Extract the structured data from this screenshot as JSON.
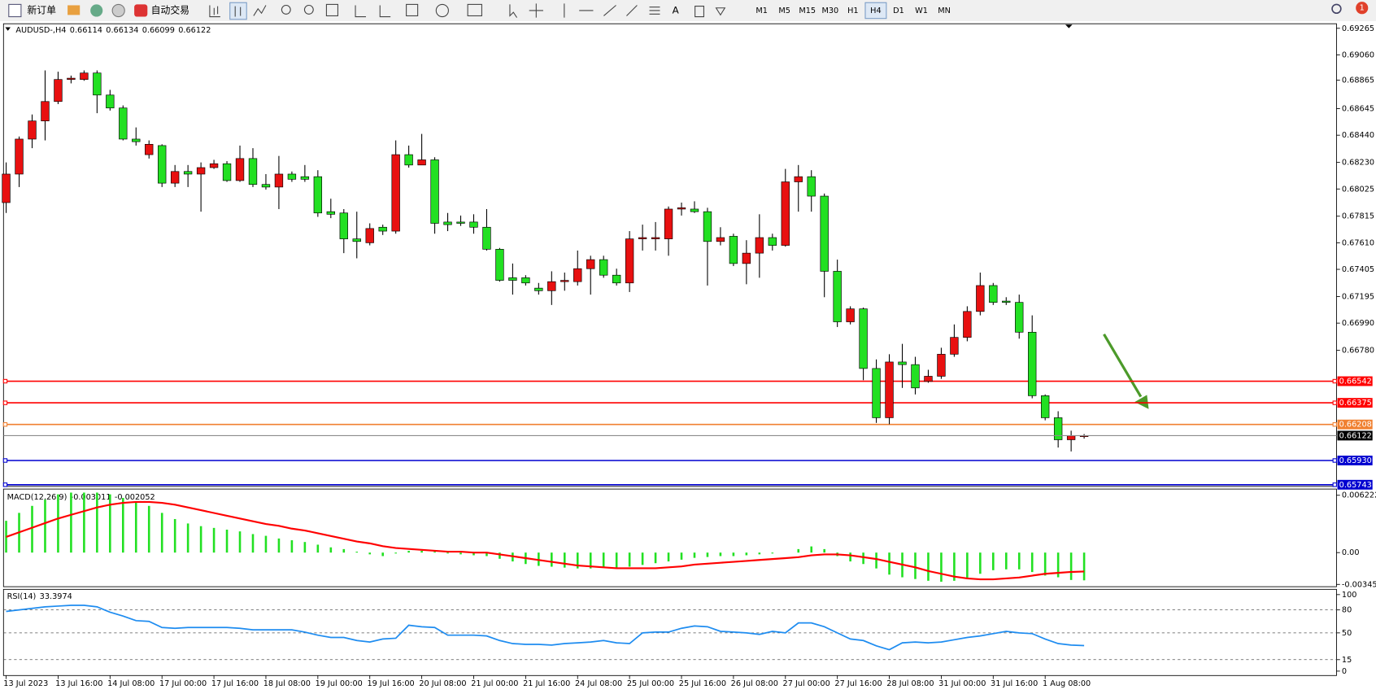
{
  "toolbar": {
    "new_order": "新订单",
    "auto_trading": "自动交易",
    "timeframes": [
      "M1",
      "M5",
      "M15",
      "M30",
      "H1",
      "H4",
      "D1",
      "W1",
      "MN"
    ],
    "active_timeframe": 5,
    "badge": "1"
  },
  "chart_data": [
    {
      "type": "candlestick",
      "title": "AUDUSD-,H4",
      "categories": [
        "13 Jul 2023",
        null,
        null,
        null,
        "13 Jul 16:00",
        null,
        null,
        null,
        "14 Jul 08:00",
        null,
        null,
        null,
        "17 Jul 00:00",
        null,
        null,
        null,
        "17 Jul 16:00",
        null,
        null,
        null,
        "18 Jul 08:00",
        null,
        null,
        null,
        "19 Jul 00:00",
        null,
        null,
        null,
        "19 Jul 16:00",
        null,
        null,
        null,
        "20 Jul 08:00",
        null,
        null,
        null,
        "21 Jul 00:00",
        null,
        null,
        null,
        "21 Jul 16:00",
        null,
        null,
        null,
        "24 Jul 08:00",
        null,
        null,
        null,
        "25 Jul 00:00",
        null,
        null,
        null,
        "25 Jul 16:00",
        null,
        null,
        null,
        "26 Jul 08:00",
        null,
        null,
        null,
        "27 Jul 00:00",
        null,
        null,
        null,
        "27 Jul 16:00",
        null,
        null,
        null,
        "28 Jul 08:00",
        null,
        null,
        null,
        "31 Jul 00:00",
        null,
        null,
        null,
        "31 Jul 16:00",
        null,
        null,
        null,
        "1 Aug 08:00",
        null,
        null,
        null
      ],
      "open": [
        0.6792,
        0.6814,
        0.6841,
        0.6855,
        0.687,
        0.6887,
        0.6887,
        0.6892,
        0.6875,
        0.6865,
        0.6841,
        0.6829,
        0.6836,
        0.6807,
        0.6816,
        0.6814,
        0.6819,
        0.6822,
        0.6809,
        0.6826,
        0.6806,
        0.6804,
        0.6814,
        0.6812,
        0.6812,
        0.6785,
        0.6784,
        0.6764,
        0.6761,
        0.6773,
        0.677,
        0.6829,
        0.6821,
        0.6825,
        0.6777,
        0.6777,
        0.6777,
        0.6773,
        0.6756,
        0.6734,
        0.6734,
        0.6726,
        0.6724,
        0.6731,
        0.6731,
        0.6741,
        0.6748,
        0.6736,
        0.673,
        0.6764,
        0.6764,
        0.6764,
        0.6787,
        0.6787,
        0.6785,
        0.6762,
        0.6766,
        0.6745,
        0.6753,
        0.6765,
        0.6759,
        0.6808,
        0.6812,
        0.6797,
        0.6739,
        0.67,
        0.671,
        0.6664,
        0.6626,
        0.6669,
        0.6667,
        0.6654,
        0.6658,
        0.6675,
        0.6688,
        0.6708,
        0.6728,
        0.6716,
        0.6715,
        0.6692,
        0.6643,
        0.6626,
        0.6609,
        0.66114
      ],
      "high": [
        0.6823,
        0.6843,
        0.686,
        0.6894,
        0.6893,
        0.689,
        0.6894,
        0.6894,
        0.6879,
        0.6867,
        0.685,
        0.684,
        0.6837,
        0.6821,
        0.6821,
        0.6823,
        0.6825,
        0.6824,
        0.6836,
        0.6834,
        0.6814,
        0.6828,
        0.6816,
        0.6821,
        0.6817,
        0.6795,
        0.6787,
        0.6785,
        0.6776,
        0.6775,
        0.684,
        0.6836,
        0.6845,
        0.6827,
        0.6784,
        0.6782,
        0.6783,
        0.6787,
        0.6757,
        0.6745,
        0.6736,
        0.673,
        0.6739,
        0.6738,
        0.6755,
        0.6751,
        0.6751,
        0.6741,
        0.677,
        0.6775,
        0.6777,
        0.6789,
        0.6792,
        0.6793,
        0.6788,
        0.6773,
        0.6768,
        0.6763,
        0.6783,
        0.6768,
        0.6818,
        0.6821,
        0.6817,
        0.6799,
        0.6748,
        0.6712,
        0.6711,
        0.6671,
        0.6675,
        0.6683,
        0.6673,
        0.6663,
        0.668,
        0.6698,
        0.6712,
        0.6738,
        0.673,
        0.6719,
        0.6721,
        0.6705,
        0.6644,
        0.6631,
        0.6616,
        0.66134
      ],
      "low": [
        0.6784,
        0.6804,
        0.6834,
        0.684,
        0.6868,
        0.6884,
        0.6886,
        0.6861,
        0.6863,
        0.684,
        0.6836,
        0.6826,
        0.6804,
        0.6804,
        0.6804,
        0.6785,
        0.6818,
        0.6808,
        0.6808,
        0.6804,
        0.6802,
        0.6787,
        0.6808,
        0.6808,
        0.6781,
        0.678,
        0.6753,
        0.6749,
        0.6759,
        0.6767,
        0.6768,
        0.6819,
        0.6821,
        0.6768,
        0.677,
        0.6774,
        0.6768,
        0.6755,
        0.6731,
        0.6721,
        0.6728,
        0.6721,
        0.6713,
        0.6724,
        0.6728,
        0.6721,
        0.6734,
        0.6728,
        0.6723,
        0.6755,
        0.6755,
        0.6751,
        0.6782,
        0.6784,
        0.6728,
        0.6759,
        0.6743,
        0.6729,
        0.6734,
        0.6755,
        0.6758,
        0.6785,
        0.6785,
        0.6719,
        0.6696,
        0.6698,
        0.6655,
        0.6622,
        0.6621,
        0.6649,
        0.6644,
        0.6653,
        0.6656,
        0.6673,
        0.6685,
        0.6705,
        0.6713,
        0.6713,
        0.6687,
        0.6641,
        0.6624,
        0.6603,
        0.66,
        0.66099
      ],
      "close": [
        0.6814,
        0.6841,
        0.6855,
        0.687,
        0.6887,
        0.6888,
        0.6892,
        0.6875,
        0.6865,
        0.6841,
        0.6839,
        0.6837,
        0.6807,
        0.6816,
        0.6814,
        0.6819,
        0.6822,
        0.6809,
        0.6826,
        0.6806,
        0.6804,
        0.6814,
        0.681,
        0.681,
        0.6784,
        0.6783,
        0.6764,
        0.6762,
        0.6772,
        0.677,
        0.6829,
        0.6821,
        0.6825,
        0.6776,
        0.6775,
        0.6776,
        0.6773,
        0.6756,
        0.6732,
        0.6732,
        0.673,
        0.6724,
        0.6731,
        0.6732,
        0.6741,
        0.6748,
        0.6736,
        0.673,
        0.6764,
        0.6765,
        0.6765,
        0.6787,
        0.6788,
        0.6785,
        0.6762,
        0.6765,
        0.6745,
        0.6753,
        0.6765,
        0.6759,
        0.6808,
        0.6812,
        0.6797,
        0.6739,
        0.67,
        0.671,
        0.6664,
        0.6626,
        0.6669,
        0.6667,
        0.6649,
        0.6658,
        0.6675,
        0.6688,
        0.6708,
        0.6728,
        0.6715,
        0.6715,
        0.6692,
        0.6643,
        0.6626,
        0.6609,
        0.6612,
        0.66122
      ],
      "up_color": "#e81010",
      "down_color": "#22e022",
      "wick_color": "#000000",
      "current_price_color": "#8c8c8c",
      "ylim": [
        0.6573,
        0.693
      ],
      "yticks": [
        0.69265,
        {
          "value": 0.6906,
          "label": "0.69060"
        },
        0.68865,
        0.68645,
        {
          "value": 0.6844,
          "label": "0.68440"
        },
        {
          "value": 0.6823,
          "label": "0.68230"
        },
        0.68025,
        0.67815,
        {
          "value": 0.6761,
          "label": "0.67610"
        },
        0.67405,
        0.67195,
        {
          "value": 0.6699,
          "label": "0.66990"
        },
        {
          "value": 0.6678,
          "label": "0.66780"
        }
      ],
      "levels": [
        {
          "value": 0.66542,
          "color": "#ff0000"
        },
        {
          "value": 0.66375,
          "color": "#ff0000"
        },
        {
          "value": 0.66208,
          "color": "#f08030"
        },
        {
          "value": 0.6593,
          "label": "0.65930",
          "color": "#0000d0"
        },
        {
          "value": 0.65743,
          "color": "#0000d0"
        }
      ]
    },
    {
      "type": "macd",
      "title": "MACD(12,26,9)",
      "series": [
        {
          "color": "#22e022",
          "values": [
            0.00345,
            0.00431,
            0.00507,
            0.00574,
            0.00632,
            0.00651,
            0.00651,
            0.00651,
            0.00632,
            0.00593,
            0.00555,
            0.00507,
            0.00431,
            0.00364,
            0.00316,
            0.00287,
            0.00268,
            0.00249,
            0.0023,
            0.00201,
            0.00182,
            0.00153,
            0.00134,
            0.00115,
            0.00086,
            0.00057,
            0.00038,
            0.0001,
            -0.00019,
            -0.00038,
            -0.0001,
            0.00019,
            0.00019,
            0.0001,
            -0.0001,
            -0.00019,
            -0.00029,
            -0.00038,
            -0.00067,
            -0.00096,
            -0.00124,
            -0.00144,
            -0.00153,
            -0.00163,
            -0.00172,
            -0.00172,
            -0.00163,
            -0.00163,
            -0.00153,
            -0.00134,
            -0.00115,
            -0.00096,
            -0.00077,
            -0.00057,
            -0.00048,
            -0.00038,
            -0.00038,
            -0.00029,
            -0.00019,
            -0.0001,
            0,
            0.00038,
            0.00067,
            0.00038,
            -0.00038,
            -0.00096,
            -0.00124,
            -0.00172,
            -0.00239,
            -0.00268,
            -0.00287,
            -0.00306,
            -0.00316,
            -0.00306,
            -0.00278,
            -0.0023,
            -0.00191,
            -0.00182,
            -0.00182,
            -0.00211,
            -0.00249,
            -0.00268,
            -0.00297,
            -0.003011
          ]
        },
        {
          "color": "#ff0000",
          "values": [
            0.0017,
            0.0022,
            0.0027,
            0.0032,
            0.0037,
            0.0041,
            0.0045,
            0.0049,
            0.0052,
            0.0054,
            0.0055,
            0.0055,
            0.0054,
            0.0052,
            0.0049,
            0.0046,
            0.0043,
            0.004,
            0.0037,
            0.0034,
            0.0031,
            0.0029,
            0.0026,
            0.0024,
            0.0021,
            0.0018,
            0.0015,
            0.0012,
            0.001,
            0.0007,
            0.0005,
            0.0004,
            0.0003,
            0.0002,
            0.0001,
            0.0001,
            0,
            0,
            -0.0002,
            -0.0004,
            -0.0006,
            -0.0008,
            -0.001,
            -0.0012,
            -0.0014,
            -0.0015,
            -0.0016,
            -0.0017,
            -0.0017,
            -0.0017,
            -0.0017,
            -0.0016,
            -0.0015,
            -0.0013,
            -0.0012,
            -0.0011,
            -0.001,
            -0.0009,
            -0.0008,
            -0.0007,
            -0.0006,
            -0.0005,
            -0.0003,
            -0.0002,
            -0.0002,
            -0.0003,
            -0.0005,
            -0.0007,
            -0.001,
            -0.0013,
            -0.0016,
            -0.002,
            -0.0023,
            -0.0026,
            -0.0028,
            -0.0029,
            -0.0029,
            -0.0028,
            -0.0027,
            -0.0025,
            -0.0023,
            -0.0022,
            -0.0021,
            -0.002052
          ]
        }
      ],
      "ylim": [
        -0.0037,
        0.0068
      ],
      "yticks": [
        0.006222,
        {
          "value": 0,
          "label": "0.00"
        },
        -0.003451
      ]
    },
    {
      "type": "line",
      "title": "RSI(14)",
      "series": [
        {
          "color": "#1e8cf0",
          "values": [
            78,
            80,
            82,
            84,
            85,
            86,
            86,
            84,
            77,
            72,
            66,
            65,
            57,
            56,
            57,
            57,
            57,
            57,
            56,
            54,
            54,
            54,
            54,
            51,
            47,
            44,
            44,
            40,
            38,
            42,
            43,
            60,
            58,
            57,
            47,
            47,
            47,
            46,
            40,
            36,
            35,
            35,
            34,
            36,
            37,
            38,
            40,
            37,
            36,
            50,
            51,
            51,
            56,
            59,
            58,
            52,
            51,
            50,
            48,
            52,
            50,
            63,
            63,
            58,
            50,
            42,
            40,
            33,
            28,
            37,
            38,
            37,
            38,
            41,
            44,
            46,
            49,
            52,
            50,
            49,
            42,
            36,
            34,
            33.3974
          ]
        }
      ],
      "ylim": [
        0,
        100
      ],
      "yticks": [
        100,
        80,
        50,
        15,
        0
      ]
    }
  ]
}
